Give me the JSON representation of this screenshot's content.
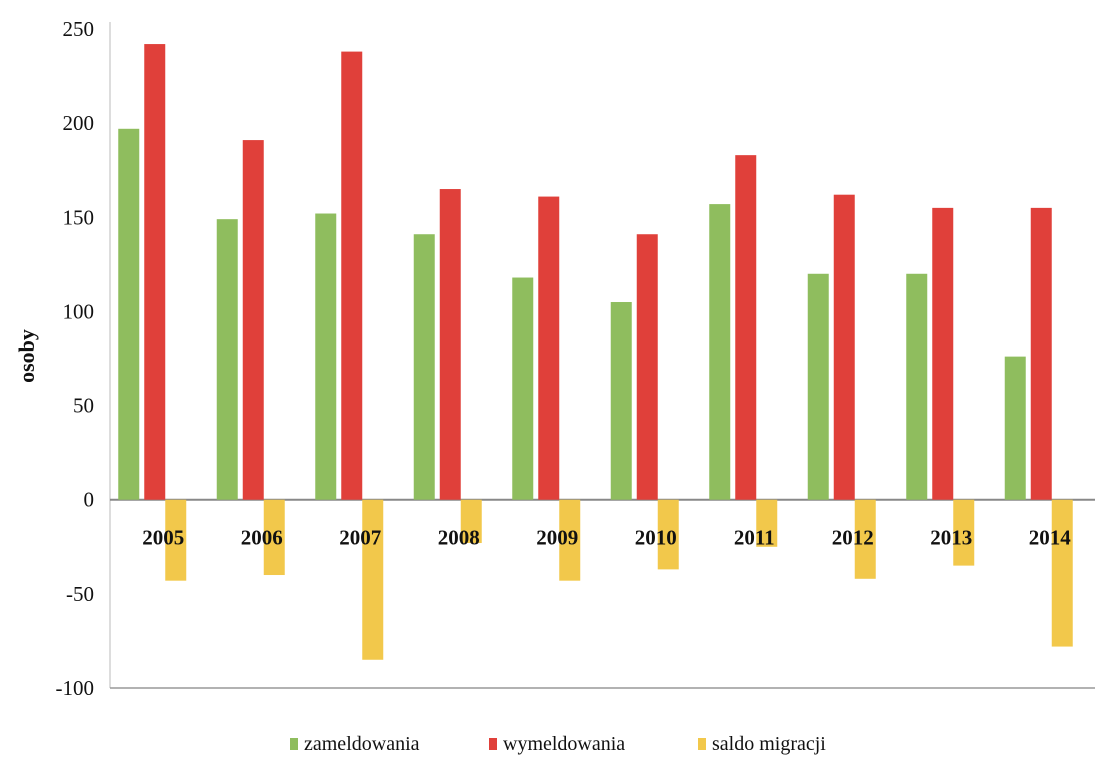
{
  "chart_data": {
    "type": "bar",
    "title": "",
    "xlabel": "",
    "ylabel": "osoby",
    "categories": [
      "2005",
      "2006",
      "2007",
      "2008",
      "2009",
      "2010",
      "2011",
      "2012",
      "2013",
      "2014"
    ],
    "series": [
      {
        "name": "zameldowania",
        "color": "#8fbd5e",
        "values": [
          197,
          149,
          152,
          141,
          118,
          105,
          157,
          120,
          120,
          76
        ]
      },
      {
        "name": "wymeldowania",
        "color": "#e0403a",
        "values": [
          242,
          191,
          238,
          165,
          161,
          141,
          183,
          162,
          155,
          155
        ]
      },
      {
        "name": "saldo migracji",
        "color": "#f2c84b",
        "values": [
          -43,
          -40,
          -85,
          -23,
          -43,
          -37,
          -25,
          -42,
          -35,
          -78
        ]
      }
    ],
    "ylim": [
      -100,
      250
    ],
    "yticks": [
      "250",
      "200",
      "150",
      "100",
      "50",
      "0",
      "-50",
      "-100"
    ],
    "ytick_values": [
      250,
      200,
      150,
      100,
      50,
      0,
      -50,
      -100
    ],
    "grid": false,
    "legend_position": "bottom"
  }
}
